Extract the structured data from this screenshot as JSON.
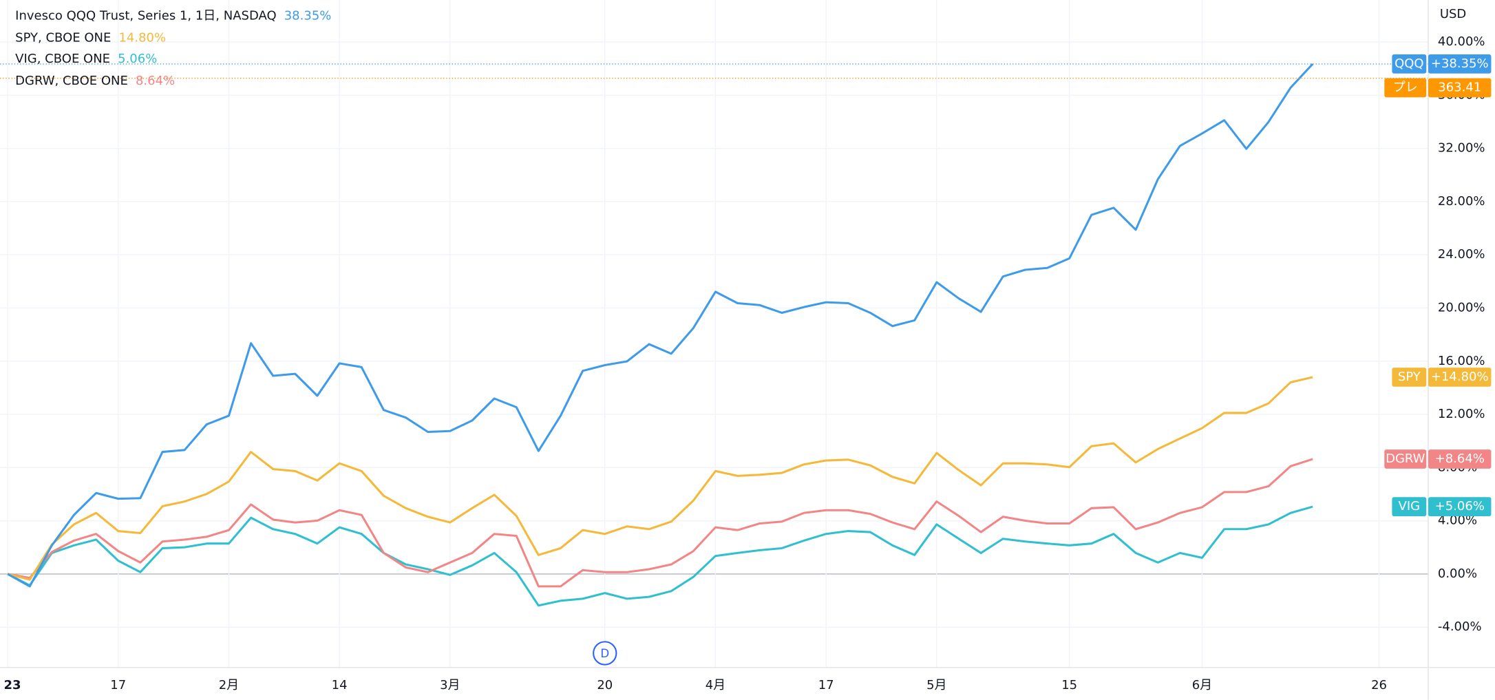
{
  "chart_data": {
    "type": "line",
    "currency": "USD",
    "categories": [
      "23",
      null,
      null,
      null,
      null,
      "17",
      null,
      null,
      null,
      null,
      "2月",
      null,
      null,
      null,
      null,
      "14",
      null,
      null,
      null,
      null,
      "3月",
      null,
      null,
      null,
      null,
      null,
      null,
      "20",
      null,
      null,
      null,
      null,
      "4月",
      null,
      null,
      null,
      null,
      "17",
      null,
      null,
      null,
      null,
      "5月",
      null,
      null,
      null,
      null,
      null,
      "15",
      null,
      null,
      null,
      null,
      null,
      "6月",
      null,
      null,
      null,
      null,
      null,
      null,
      null,
      "26"
    ],
    "series": [
      {
        "name": "Invesco QQQ Trust, Series 1, 1日, NASDAQ",
        "symbol": "QQQ",
        "color": "#3d9be9",
        "legend_value": "38.35%",
        "badge": "+38.35%",
        "values": [
          0,
          -0.93,
          2.15,
          4.44,
          6.09,
          5.66,
          5.7,
          9.18,
          9.32,
          11.25,
          11.9,
          17.35,
          14.9,
          15.05,
          13.4,
          15.84,
          15.55,
          12.33,
          11.76,
          10.68,
          10.75,
          11.54,
          13.19,
          12.54,
          9.25,
          11.9,
          15.27,
          15.7,
          15.99,
          17.28,
          16.56,
          18.49,
          21.22,
          20.36,
          20.22,
          19.64,
          20.07,
          20.43,
          20.36,
          19.64,
          18.64,
          19.07,
          21.94,
          20.72,
          19.71,
          22.37,
          22.87,
          23.01,
          23.73,
          27.0,
          27.53,
          25.88,
          29.68,
          32.19,
          33.12,
          34.12,
          31.97,
          33.98,
          36.56,
          38.35,
          null,
          null,
          null
        ]
      },
      {
        "name": "SPY, CBOE ONE",
        "symbol": "SPY",
        "color": "#f5b93a",
        "legend_value": "14.80%",
        "badge": "+14.80%",
        "values": [
          0,
          -0.43,
          2.22,
          3.73,
          4.59,
          3.23,
          3.08,
          5.09,
          5.45,
          6.02,
          6.95,
          9.18,
          7.89,
          7.74,
          7.03,
          8.32,
          7.74,
          5.88,
          4.95,
          4.3,
          3.87,
          4.95,
          5.95,
          4.37,
          1.43,
          1.94,
          3.3,
          3.01,
          3.58,
          3.37,
          3.94,
          5.52,
          7.74,
          7.38,
          7.46,
          7.6,
          8.24,
          8.53,
          8.6,
          8.17,
          7.31,
          6.81,
          9.1,
          7.81,
          6.67,
          8.32,
          8.32,
          8.24,
          8.03,
          9.61,
          9.82,
          8.39,
          9.39,
          10.18,
          10.97,
          12.11,
          12.11,
          12.83,
          14.41,
          14.8,
          null,
          null,
          null
        ]
      },
      {
        "name": "VIG, CBOE ONE",
        "symbol": "VIG",
        "color": "#30bfcf",
        "legend_value": "5.06%",
        "badge": "+5.06%",
        "values": [
          0,
          -0.86,
          1.58,
          2.15,
          2.58,
          1.0,
          0.14,
          1.94,
          2.01,
          2.29,
          2.29,
          4.23,
          3.37,
          3.01,
          2.29,
          3.51,
          3.01,
          1.58,
          0.72,
          0.36,
          -0.07,
          0.65,
          1.58,
          0.14,
          -2.37,
          -2.01,
          -1.86,
          -1.43,
          -1.86,
          -1.72,
          -1.29,
          -0.22,
          1.36,
          1.58,
          1.79,
          1.94,
          2.51,
          3.01,
          3.23,
          3.15,
          2.15,
          1.43,
          3.73,
          2.65,
          1.58,
          2.65,
          2.44,
          2.29,
          2.15,
          2.29,
          3.01,
          1.58,
          0.86,
          1.58,
          1.22,
          3.37,
          3.37,
          3.73,
          4.59,
          5.06,
          null,
          null,
          null
        ]
      },
      {
        "name": "DGRW, CBOE ONE",
        "symbol": "DGRW",
        "color": "#f28585",
        "legend_value": "8.64%",
        "badge": "+8.64%",
        "values": [
          0,
          -0.29,
          1.65,
          2.51,
          3.01,
          1.72,
          0.86,
          2.44,
          2.58,
          2.8,
          3.3,
          5.23,
          4.09,
          3.87,
          4.01,
          4.8,
          4.44,
          1.58,
          0.5,
          0.14,
          0.86,
          1.58,
          3.01,
          2.87,
          -0.93,
          -0.93,
          0.29,
          0.14,
          0.14,
          0.36,
          0.72,
          1.72,
          3.51,
          3.3,
          3.8,
          3.94,
          4.59,
          4.8,
          4.8,
          4.52,
          3.87,
          3.37,
          5.45,
          4.37,
          3.15,
          4.3,
          4.01,
          3.8,
          3.8,
          4.95,
          5.02,
          3.37,
          3.87,
          4.59,
          5.02,
          6.16,
          6.16,
          6.6,
          8.1,
          8.64,
          null,
          null,
          null
        ]
      }
    ],
    "pre_market": {
      "label": "プレ",
      "price": "363.41"
    },
    "event_label": "D",
    "ylim": [
      -7.03,
      43.15
    ],
    "yticks": [
      {
        "value": -4,
        "label": "-4.00%"
      },
      {
        "value": 0,
        "label": "0.00%"
      },
      {
        "value": 4,
        "label": "4.00%"
      },
      {
        "value": 8,
        "label": "8.00%"
      },
      {
        "value": 12,
        "label": "12.00%"
      },
      {
        "value": 16,
        "label": "16.00%"
      },
      {
        "value": 20,
        "label": "20.00%"
      },
      {
        "value": 24,
        "label": "24.00%"
      },
      {
        "value": 28,
        "label": "28.00%"
      },
      {
        "value": 32,
        "label": "32.00%"
      },
      {
        "value": 36,
        "label": "36.00%"
      },
      {
        "value": 40,
        "label": "40.00%"
      }
    ],
    "grid": true
  }
}
